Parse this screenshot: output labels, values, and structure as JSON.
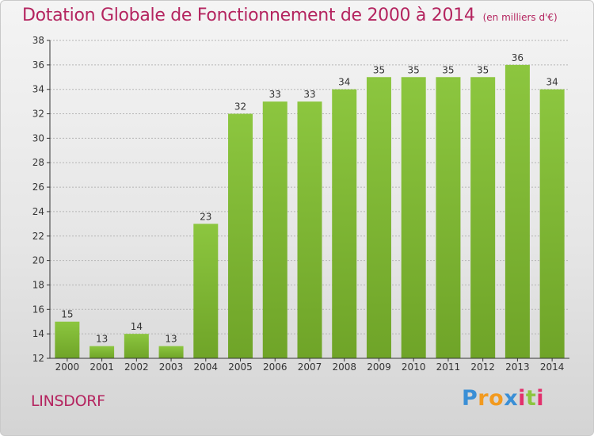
{
  "chart_data": {
    "type": "bar",
    "title": "Dotation Globale de Fonctionnement de 2000 à 2014",
    "subtitle": "(en milliers d'€)",
    "categories": [
      "2000",
      "2001",
      "2002",
      "2003",
      "2004",
      "2005",
      "2006",
      "2007",
      "2008",
      "2009",
      "2010",
      "2011",
      "2012",
      "2013",
      "2014"
    ],
    "values": [
      15,
      13,
      14,
      13,
      23,
      32,
      33,
      33,
      34,
      35,
      35,
      35,
      35,
      36,
      34
    ],
    "ylim": [
      12,
      38
    ],
    "yticks": [
      12,
      14,
      16,
      18,
      20,
      22,
      24,
      26,
      28,
      30,
      32,
      34,
      36,
      38
    ],
    "grid": true,
    "bar_color": "#8cc63f",
    "bar_color_dark": "#6fa428"
  },
  "commune": "LINSDORF",
  "logo": {
    "letters": [
      {
        "ch": "P",
        "color": "#3a8fd6"
      },
      {
        "ch": "r",
        "color": "#f29a1f"
      },
      {
        "ch": "o",
        "color": "#f29a1f"
      },
      {
        "ch": "x",
        "color": "#3a8fd6"
      },
      {
        "ch": "i",
        "color": "#e2306c"
      },
      {
        "ch": "t",
        "color": "#8cc63f"
      },
      {
        "ch": "i",
        "color": "#e2306c"
      }
    ]
  },
  "colors": {
    "title": "#b4245f",
    "axis": "#333333",
    "grid": "#b5b5b5"
  }
}
